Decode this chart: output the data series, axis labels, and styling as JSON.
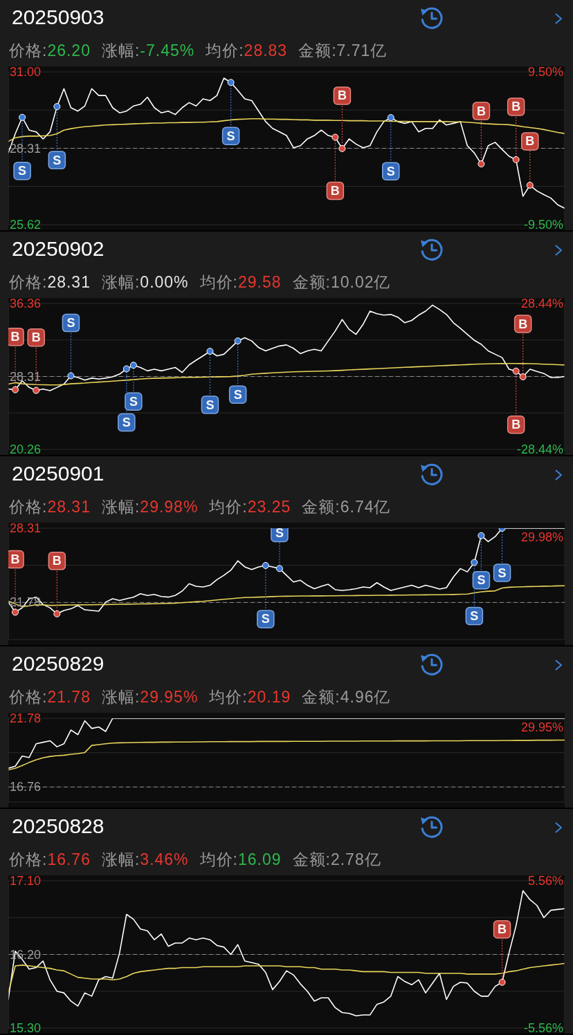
{
  "chart_data": [
    {
      "type": "line",
      "title": "20250903",
      "annotations": [
        "价格:26.20",
        "涨幅:-7.45%",
        "均价:28.83",
        "金额:7.71亿"
      ],
      "categories": [
        null,
        null,
        null,
        null,
        null,
        null,
        null,
        null,
        null,
        null,
        null,
        null,
        null,
        null,
        null,
        null,
        null,
        null,
        null,
        null,
        null,
        null,
        null,
        null,
        null,
        null,
        null,
        null,
        null,
        null,
        null,
        null,
        null,
        null,
        null,
        null,
        null,
        null,
        null,
        null,
        null,
        null,
        null,
        null,
        null,
        null,
        null,
        null,
        null,
        null,
        null,
        null,
        null,
        null,
        null,
        null,
        null,
        null,
        null,
        null,
        null,
        null,
        null,
        null,
        null,
        null,
        null,
        null,
        null,
        null,
        null,
        null,
        null,
        null,
        null,
        null,
        null,
        null,
        null,
        null,
        null
      ],
      "series": [
        {
          "color": "#ffffff",
          "values": [
            28.15,
            28.82,
            29.4,
            28.95,
            28.89,
            28.64,
            28.89,
            29.78,
            30.41,
            29.74,
            29.62,
            29.8,
            30.41,
            30.17,
            30.17,
            29.74,
            29.56,
            29.62,
            29.8,
            29.86,
            30.11,
            29.74,
            29.56,
            29.62,
            29.5,
            29.74,
            29.92,
            29.8,
            30.05,
            29.99,
            30.17,
            30.78,
            30.63,
            30.35,
            30.05,
            29.99,
            29.62,
            29.25,
            29.01,
            28.89,
            28.76,
            28.33,
            28.4,
            28.64,
            28.76,
            28.95,
            28.76,
            28.7,
            28.3,
            28.64,
            28.46,
            28.33,
            28.4,
            28.89,
            29.25,
            29.39,
            29.25,
            29.19,
            29.25,
            28.89,
            29.01,
            29.01,
            29.31,
            29.13,
            29.19,
            29.25,
            28.4,
            28.15,
            27.76,
            28.4,
            28.52,
            28.27,
            28.03,
            27.91,
            26.62,
            27.01,
            26.81,
            26.68,
            26.56,
            26.32,
            26.2
          ]
        },
        {
          "color": "#e9d55b",
          "values": [
            28.55,
            28.68,
            28.72,
            28.74,
            28.74,
            28.75,
            28.76,
            28.82,
            28.95,
            29.0,
            29.04,
            29.07,
            29.09,
            29.11,
            29.13,
            29.14,
            29.15,
            29.16,
            29.17,
            29.18,
            29.19,
            29.2,
            29.2,
            29.21,
            29.21,
            29.22,
            29.22,
            29.23,
            29.23,
            29.24,
            29.25,
            29.28,
            29.31,
            29.33,
            29.34,
            29.35,
            29.35,
            29.34,
            29.34,
            29.33,
            29.33,
            29.32,
            29.31,
            29.31,
            29.3,
            29.3,
            29.3,
            29.29,
            29.29,
            29.28,
            29.28,
            29.28,
            29.27,
            29.27,
            29.27,
            29.26,
            29.26,
            29.26,
            29.25,
            29.25,
            29.25,
            29.25,
            29.25,
            29.25,
            29.24,
            29.24,
            29.23,
            29.21,
            29.19,
            29.17,
            29.16,
            29.15,
            29.14,
            29.11,
            29.07,
            29.04,
            29.01,
            28.97,
            28.92,
            28.87,
            28.83
          ]
        },
        {
          "name": "S",
          "type": "scatter",
          "marker": "circle",
          "color": "#3a78d4",
          "values": [
            null,
            null,
            29.4,
            null,
            null,
            null,
            null,
            29.78,
            null,
            null,
            null,
            null,
            null,
            null,
            null,
            null,
            null,
            null,
            null,
            null,
            null,
            null,
            null,
            null,
            null,
            null,
            null,
            null,
            null,
            null,
            null,
            null,
            30.63,
            null,
            null,
            null,
            null,
            null,
            null,
            null,
            null,
            null,
            null,
            null,
            null,
            null,
            null,
            null,
            null,
            null,
            null,
            null,
            null,
            null,
            null,
            29.39,
            null,
            null,
            null,
            null,
            null,
            null,
            null,
            null,
            null,
            null,
            null,
            null,
            null,
            null,
            null,
            null,
            null,
            null,
            null,
            null,
            null,
            null,
            null,
            null,
            null
          ]
        },
        {
          "name": "B",
          "type": "scatter",
          "marker": "circle",
          "color": "#d9483d",
          "values": [
            null,
            null,
            null,
            null,
            null,
            null,
            null,
            null,
            null,
            null,
            null,
            null,
            null,
            null,
            null,
            null,
            null,
            null,
            null,
            null,
            null,
            null,
            null,
            null,
            null,
            null,
            null,
            null,
            null,
            null,
            null,
            null,
            null,
            null,
            null,
            null,
            null,
            null,
            null,
            null,
            null,
            null,
            null,
            null,
            null,
            null,
            null,
            28.7,
            28.3,
            null,
            null,
            null,
            null,
            null,
            null,
            null,
            null,
            null,
            null,
            null,
            null,
            null,
            null,
            null,
            null,
            null,
            null,
            null,
            27.76,
            null,
            null,
            null,
            null,
            27.91,
            null,
            27.01,
            null,
            null,
            null,
            null,
            null
          ]
        }
      ],
      "ylim": [
        25.62,
        31.0
      ],
      "yticks": [
        {
          "value": 31,
          "label": "31.00"
        },
        {
          "value": 29.66,
          "label": null
        },
        28.31,
        {
          "value": 26.97,
          "label": null
        },
        25.62
      ],
      "y2lim": [
        -9.5,
        9.5
      ],
      "y2ticks": [
        {
          "value": 9.5,
          "label": "9.50%"
        },
        {
          "value": -9.5,
          "label": "-9.50%"
        }
      ],
      "ref_lines": [
        {
          "axis": "y",
          "value": 28.31,
          "color": "#8c8c8c",
          "line_style": "dashed"
        }
      ],
      "grid": true,
      "marker": "none"
    },
    {
      "type": "line",
      "title": "20250902",
      "annotations": [
        "价格:28.31",
        "涨幅:0.00%",
        "均价:29.58",
        "金额:10.02亿"
      ],
      "categories": [
        null,
        null,
        null,
        null,
        null,
        null,
        null,
        null,
        null,
        null,
        null,
        null,
        null,
        null,
        null,
        null,
        null,
        null,
        null,
        null,
        null,
        null,
        null,
        null,
        null,
        null,
        null,
        null,
        null,
        null,
        null,
        null,
        null,
        null,
        null,
        null,
        null,
        null,
        null,
        null,
        null,
        null,
        null,
        null,
        null,
        null,
        null,
        null,
        null,
        null,
        null,
        null,
        null,
        null,
        null,
        null,
        null,
        null,
        null,
        null,
        null,
        null,
        null,
        null,
        null,
        null,
        null,
        null,
        null,
        null,
        null,
        null,
        null,
        null,
        null,
        null,
        null,
        null,
        null,
        null,
        null
      ],
      "series": [
        {
          "color": "#ffffff",
          "values": [
            26.92,
            26.85,
            27.83,
            27.1,
            26.77,
            26.92,
            26.74,
            27.1,
            27.47,
            28.38,
            28.2,
            27.91,
            28.13,
            28.02,
            28.13,
            28.27,
            28.57,
            29.15,
            29.55,
            29.3,
            28.93,
            29.11,
            28.93,
            29.11,
            29.3,
            28.75,
            29.59,
            30.1,
            30.58,
            31.09,
            30.58,
            30.76,
            31.49,
            32.23,
            32.59,
            32.23,
            31.49,
            31.13,
            31.42,
            31.68,
            31.79,
            31.42,
            30.83,
            31.13,
            31.31,
            31.13,
            32.23,
            33.32,
            34.6,
            33.51,
            32.96,
            34.05,
            35.52,
            35.23,
            35.08,
            35.15,
            34.86,
            34.24,
            34.49,
            35.08,
            35.52,
            36.18,
            35.7,
            35.15,
            34.24,
            33.62,
            32.96,
            32.3,
            31.86,
            31.13,
            30.76,
            30.4,
            29.11,
            28.9,
            28.27,
            29.11,
            28.86,
            28.64,
            28.2,
            28.2,
            28.31
          ]
        },
        {
          "color": "#e9d55b",
          "values": [
            27.47,
            27.63,
            27.5,
            27.45,
            27.41,
            27.39,
            27.37,
            27.38,
            27.42,
            27.5,
            27.54,
            27.58,
            27.64,
            27.69,
            27.74,
            27.8,
            27.85,
            27.9,
            27.96,
            28.02,
            28.08,
            28.11,
            28.13,
            28.15,
            28.17,
            28.19,
            28.21,
            28.22,
            28.23,
            28.25,
            28.26,
            28.28,
            28.3,
            28.36,
            28.44,
            28.56,
            28.62,
            28.66,
            28.71,
            28.75,
            28.79,
            28.82,
            28.84,
            28.86,
            28.88,
            28.9,
            28.92,
            28.95,
            28.99,
            29.03,
            29.07,
            29.1,
            29.14,
            29.17,
            29.21,
            29.25,
            29.28,
            29.32,
            29.35,
            29.39,
            29.42,
            29.46,
            29.49,
            29.52,
            29.56,
            29.59,
            29.62,
            29.66,
            29.68,
            29.7,
            29.72,
            29.73,
            29.74,
            29.74,
            29.73,
            29.72,
            29.7,
            29.67,
            29.64,
            29.61,
            29.58
          ]
        },
        {
          "name": "S",
          "type": "scatter",
          "marker": "circle",
          "color": "#3a78d4",
          "values": [
            null,
            null,
            null,
            null,
            null,
            null,
            null,
            null,
            null,
            28.38,
            null,
            null,
            null,
            null,
            null,
            null,
            null,
            29.15,
            29.55,
            null,
            null,
            null,
            null,
            null,
            null,
            null,
            null,
            null,
            null,
            31.09,
            null,
            null,
            null,
            32.23,
            null,
            null,
            null,
            null,
            null,
            null,
            null,
            null,
            null,
            null,
            null,
            null,
            null,
            null,
            null,
            null,
            null,
            null,
            null,
            null,
            null,
            null,
            null,
            null,
            null,
            null,
            null,
            null,
            null,
            null,
            null,
            null,
            null,
            null,
            null,
            null,
            null,
            null,
            null,
            null,
            null,
            null,
            null,
            null,
            null,
            null,
            null
          ]
        },
        {
          "name": "B",
          "type": "scatter",
          "marker": "circle",
          "color": "#d9483d",
          "values": [
            null,
            26.85,
            null,
            null,
            26.77,
            null,
            null,
            null,
            null,
            null,
            null,
            null,
            null,
            null,
            null,
            null,
            null,
            null,
            null,
            null,
            null,
            null,
            null,
            null,
            null,
            null,
            null,
            null,
            null,
            null,
            null,
            null,
            null,
            null,
            null,
            null,
            null,
            null,
            null,
            null,
            null,
            null,
            null,
            null,
            null,
            null,
            null,
            null,
            null,
            null,
            null,
            null,
            null,
            null,
            null,
            null,
            null,
            null,
            null,
            null,
            null,
            null,
            null,
            null,
            null,
            null,
            null,
            null,
            null,
            null,
            null,
            null,
            null,
            28.9,
            28.27,
            null,
            null,
            null,
            null,
            null,
            null
          ]
        }
      ],
      "ylim": [
        20.26,
        36.36
      ],
      "yticks": [
        36.36,
        {
          "value": 32.34,
          "label": null
        },
        28.31,
        {
          "value": 24.29,
          "label": null
        },
        20.26
      ],
      "y2lim": [
        -28.44,
        28.44
      ],
      "y2ticks": [
        {
          "value": 28.44,
          "label": "28.44%"
        },
        {
          "value": -28.44,
          "label": "-28.44%"
        }
      ],
      "ref_lines": [
        {
          "axis": "y",
          "value": 28.31,
          "color": "#8c8c8c",
          "line_style": "dashed"
        }
      ],
      "grid": true,
      "marker": "none"
    },
    {
      "type": "line",
      "title": "20250901",
      "annotations": [
        "价格:28.31",
        "涨幅:29.98%",
        "均价:23.25",
        "金额:6.74亿",
        {
          "text": "29.98%",
          "y": 28.31
        }
      ],
      "categories": [
        null,
        null,
        null,
        null,
        null,
        null,
        null,
        null,
        null,
        null,
        null,
        null,
        null,
        null,
        null,
        null,
        null,
        null,
        null,
        null,
        null,
        null,
        null,
        null,
        null,
        null,
        null,
        null,
        null,
        null,
        null,
        null,
        null,
        null,
        null,
        null,
        null,
        null,
        null,
        null,
        null,
        null,
        null,
        null,
        null,
        null,
        null,
        null,
        null,
        null,
        null,
        null,
        null,
        null,
        null,
        null,
        null,
        null,
        null,
        null,
        null,
        null,
        null,
        null,
        null,
        null,
        null,
        null,
        null,
        null,
        null,
        null,
        null,
        null,
        null,
        null,
        null,
        null,
        null,
        null,
        null
      ],
      "series": [
        {
          "color": "#ffffff",
          "values": [
            21.81,
            20.92,
            21.31,
            22.11,
            22.25,
            21.6,
            21.31,
            20.78,
            21.07,
            21.22,
            21.51,
            21.13,
            21.07,
            21.01,
            21.81,
            22.11,
            21.96,
            22.11,
            22.25,
            22.55,
            22.4,
            22.49,
            22.31,
            22.25,
            22.4,
            22.78,
            23.43,
            23.2,
            23.14,
            23.29,
            23.79,
            24.17,
            24.62,
            25.44,
            24.91,
            24.68,
            24.91,
            25.03,
            24.91,
            24.76,
            24.17,
            23.58,
            23.73,
            23.29,
            22.99,
            23.2,
            23.38,
            22.9,
            22.84,
            22.9,
            22.99,
            23.14,
            23.08,
            23.52,
            23.14,
            22.84,
            22.99,
            23.14,
            23.29,
            23.08,
            23.29,
            23.14,
            22.96,
            23.08,
            24.02,
            24.76,
            24.47,
            25.3,
            27.66,
            27.13,
            27.57,
            28.31,
            28.31,
            28.31,
            28.31,
            28.31,
            28.31,
            28.31,
            28.31,
            28.31,
            28.31
          ]
        },
        {
          "color": "#e9d55b",
          "values": [
            21.9,
            21.66,
            21.4,
            21.48,
            21.58,
            21.57,
            21.52,
            21.53,
            21.55,
            21.56,
            21.57,
            21.58,
            21.58,
            21.59,
            21.6,
            21.61,
            21.62,
            21.63,
            21.64,
            21.65,
            21.66,
            21.67,
            21.68,
            21.7,
            21.72,
            21.76,
            21.8,
            21.84,
            21.88,
            21.94,
            22.0,
            22.06,
            22.11,
            22.17,
            22.21,
            22.23,
            22.25,
            22.27,
            22.3,
            22.32,
            22.33,
            22.34,
            22.35,
            22.35,
            22.36,
            22.36,
            22.37,
            22.37,
            22.38,
            22.38,
            22.39,
            22.4,
            22.4,
            22.41,
            22.41,
            22.42,
            22.43,
            22.43,
            22.44,
            22.44,
            22.45,
            22.46,
            22.46,
            22.47,
            22.48,
            22.5,
            22.52,
            22.62,
            22.72,
            22.77,
            22.8,
            23.05,
            23.12,
            23.14,
            23.16,
            23.18,
            23.19,
            23.21,
            23.22,
            23.24,
            23.25
          ]
        },
        {
          "name": "S",
          "type": "scatter",
          "marker": "circle",
          "color": "#3a78d4",
          "values": [
            null,
            null,
            null,
            null,
            null,
            null,
            null,
            null,
            null,
            null,
            null,
            null,
            null,
            null,
            null,
            null,
            null,
            null,
            null,
            null,
            null,
            null,
            null,
            null,
            null,
            null,
            null,
            null,
            null,
            null,
            null,
            null,
            null,
            null,
            null,
            null,
            null,
            25.03,
            null,
            24.76,
            null,
            null,
            null,
            null,
            null,
            null,
            null,
            null,
            null,
            null,
            null,
            null,
            null,
            null,
            null,
            null,
            null,
            null,
            null,
            null,
            null,
            null,
            null,
            null,
            null,
            null,
            null,
            25.3,
            27.66,
            null,
            null,
            28.31,
            null,
            null,
            null,
            null,
            null,
            null,
            null,
            null,
            null
          ]
        },
        {
          "name": "B",
          "type": "scatter",
          "marker": "circle",
          "color": "#d9483d",
          "values": [
            null,
            20.92,
            null,
            null,
            null,
            null,
            null,
            20.78,
            null,
            null,
            null,
            null,
            null,
            null,
            null,
            null,
            null,
            null,
            null,
            null,
            null,
            null,
            null,
            null,
            null,
            null,
            null,
            null,
            null,
            null,
            null,
            null,
            null,
            null,
            null,
            null,
            null,
            null,
            null,
            null,
            null,
            null,
            null,
            null,
            null,
            null,
            null,
            null,
            null,
            null,
            null,
            null,
            null,
            null,
            null,
            null,
            null,
            null,
            null,
            null,
            null,
            null,
            null,
            null,
            null,
            null,
            null,
            null,
            null,
            null,
            null,
            null,
            null,
            null,
            null,
            null,
            null,
            null,
            null,
            null,
            null
          ]
        }
      ],
      "ylim": [
        18.52,
        28.31
      ],
      "yticks": [
        28.31,
        {
          "value": 25.05,
          "label": null
        },
        21.78
      ],
      "ref_lines": [
        {
          "axis": "y",
          "value": 21.78,
          "color": "#8c8c8c",
          "line_style": "dashed"
        }
      ],
      "grid": true,
      "marker": "none"
    },
    {
      "type": "line",
      "title": "20250829",
      "annotations": [
        "价格:21.78",
        "涨幅:29.95%",
        "均价:20.19",
        "金额:4.96亿",
        {
          "text": "29.95%",
          "y": 21.78
        }
      ],
      "categories": [
        null,
        null,
        null,
        null,
        null,
        null,
        null,
        null,
        null,
        null,
        null,
        null,
        null,
        null,
        null,
        null,
        null,
        null,
        null,
        null,
        null,
        null,
        null,
        null,
        null,
        null,
        null,
        null,
        null,
        null,
        null,
        null,
        null,
        null,
        null,
        null,
        null,
        null,
        null,
        null,
        null,
        null,
        null,
        null,
        null,
        null,
        null,
        null,
        null,
        null,
        null,
        null,
        null,
        null,
        null,
        null,
        null,
        null,
        null,
        null,
        null,
        null,
        null,
        null,
        null,
        null,
        null,
        null,
        null,
        null,
        null,
        null,
        null,
        null,
        null,
        null,
        null,
        null,
        null,
        null,
        null
      ],
      "series": [
        {
          "color": "#ffffff",
          "values": [
            18.13,
            18.28,
            19.02,
            18.91,
            19.92,
            20.03,
            20.14,
            19.7,
            19.92,
            20.93,
            20.59,
            21.6,
            21.04,
            21.15,
            20.82,
            21.78,
            21.78,
            21.78,
            21.78,
            21.78,
            21.78,
            21.78,
            21.78,
            21.78,
            21.78,
            21.78,
            21.78,
            21.78,
            21.78,
            21.78,
            21.78,
            21.78,
            21.78,
            21.78,
            21.78,
            21.78,
            21.78,
            21.78,
            21.78,
            21.78,
            21.78,
            21.78,
            21.78,
            21.78,
            21.78,
            21.78,
            21.78,
            21.78,
            21.78,
            21.78,
            21.78,
            21.78,
            21.78,
            21.78,
            21.78,
            21.78,
            21.78,
            21.78,
            21.78,
            21.78,
            21.78,
            21.78,
            21.78,
            21.78,
            21.78,
            21.78,
            21.78,
            21.78,
            21.78,
            21.78,
            21.78,
            21.78,
            21.78,
            21.78,
            21.78,
            21.78,
            21.78,
            21.78,
            21.78,
            21.78,
            21.78
          ]
        },
        {
          "color": "#e9d55b",
          "values": [
            18.01,
            18.13,
            18.33,
            18.55,
            18.75,
            18.9,
            18.99,
            19.05,
            19.08,
            19.15,
            19.2,
            19.28,
            19.8,
            19.86,
            19.92,
            19.97,
            19.99,
            20.0,
            20.01,
            20.02,
            20.03,
            20.03,
            20.04,
            20.04,
            20.05,
            20.05,
            20.05,
            20.06,
            20.06,
            20.07,
            20.07,
            20.07,
            20.08,
            20.08,
            20.08,
            20.08,
            20.09,
            20.09,
            20.09,
            20.09,
            20.09,
            20.1,
            20.1,
            20.1,
            20.1,
            20.1,
            20.11,
            20.11,
            20.11,
            20.11,
            20.11,
            20.12,
            20.12,
            20.12,
            20.12,
            20.12,
            20.13,
            20.13,
            20.13,
            20.13,
            20.13,
            20.14,
            20.14,
            20.14,
            20.14,
            20.14,
            20.15,
            20.15,
            20.15,
            20.15,
            20.15,
            20.16,
            20.16,
            20.17,
            20.17,
            20.17,
            20.18,
            20.18,
            20.18,
            20.19,
            20.19
          ]
        }
      ],
      "ylim": [
        15.66,
        21.78
      ],
      "yticks": [
        21.78,
        {
          "value": 19.27,
          "label": null
        },
        16.76
      ],
      "ref_lines": [
        {
          "axis": "y",
          "value": 16.76,
          "color": "#8c8c8c",
          "line_style": "dashed"
        }
      ],
      "grid": true,
      "marker": "none"
    },
    {
      "type": "line",
      "title": "20250828",
      "annotations": [
        "价格:16.76",
        "涨幅:3.46%",
        "均价:16.09",
        "金额:2.78亿"
      ],
      "categories": [
        null,
        null,
        null,
        null,
        null,
        null,
        null,
        null,
        null,
        null,
        null,
        null,
        null,
        null,
        null,
        null,
        null,
        null,
        null,
        null,
        null,
        null,
        null,
        null,
        null,
        null,
        null,
        null,
        null,
        null,
        null,
        null,
        null,
        null,
        null,
        null,
        null,
        null,
        null,
        null,
        null,
        null,
        null,
        null,
        null,
        null,
        null,
        null,
        null,
        null,
        null,
        null,
        null,
        null,
        null,
        null,
        null,
        null,
        null,
        null,
        null,
        null,
        null,
        null,
        null,
        null,
        null,
        null,
        null,
        null,
        null,
        null,
        null,
        null,
        null,
        null,
        null,
        null,
        null,
        null,
        null
      ],
      "series": [
        {
          "color": "#ffffff",
          "values": [
            15.65,
            16.24,
            16.14,
            16.02,
            16.04,
            16.12,
            15.89,
            15.75,
            15.73,
            15.63,
            15.57,
            15.73,
            15.69,
            15.89,
            15.93,
            15.91,
            16.22,
            16.69,
            16.63,
            16.51,
            16.49,
            16.38,
            16.45,
            16.3,
            16.34,
            16.34,
            16.4,
            16.38,
            16.4,
            16.38,
            16.31,
            16.29,
            16.2,
            16.32,
            16.12,
            16.1,
            16.08,
            15.98,
            15.77,
            15.87,
            16.0,
            15.95,
            15.84,
            15.75,
            15.63,
            15.67,
            15.67,
            15.55,
            15.49,
            15.48,
            15.45,
            15.46,
            15.46,
            15.59,
            15.62,
            15.69,
            15.93,
            15.87,
            15.83,
            15.89,
            15.73,
            15.85,
            15.97,
            15.65,
            15.81,
            15.86,
            15.85,
            15.75,
            15.69,
            15.69,
            15.81,
            15.86,
            16.22,
            16.55,
            16.98,
            16.87,
            16.8,
            16.65,
            16.74,
            16.75,
            16.76
          ]
        },
        {
          "color": "#e9d55b",
          "values": [
            15.73,
            16.06,
            16.07,
            16.06,
            16.05,
            16.04,
            16.03,
            16.01,
            16.0,
            15.96,
            15.92,
            15.91,
            15.9,
            15.9,
            15.9,
            15.89,
            15.9,
            15.93,
            15.97,
            15.99,
            16.0,
            16.01,
            16.02,
            16.03,
            16.03,
            16.04,
            16.04,
            16.04,
            16.05,
            16.05,
            16.05,
            16.05,
            16.05,
            16.05,
            16.06,
            16.06,
            16.06,
            16.06,
            16.06,
            16.06,
            16.05,
            16.05,
            16.05,
            16.04,
            16.04,
            16.02,
            16.02,
            16.02,
            16.01,
            16.01,
            16.0,
            15.99,
            15.99,
            15.99,
            15.99,
            15.98,
            15.98,
            15.98,
            15.98,
            15.98,
            15.97,
            15.97,
            15.97,
            15.97,
            15.97,
            15.97,
            15.96,
            15.96,
            15.96,
            15.96,
            15.96,
            15.97,
            15.99,
            16.0,
            16.02,
            16.04,
            16.05,
            16.06,
            16.07,
            16.08,
            16.09
          ]
        },
        {
          "name": "B",
          "type": "scatter",
          "marker": "circle",
          "color": "#d9483d",
          "values": [
            null,
            null,
            null,
            null,
            null,
            null,
            null,
            null,
            null,
            null,
            null,
            null,
            null,
            null,
            null,
            null,
            null,
            null,
            null,
            null,
            null,
            null,
            null,
            null,
            null,
            null,
            null,
            null,
            null,
            null,
            null,
            null,
            null,
            null,
            null,
            null,
            null,
            null,
            null,
            null,
            null,
            null,
            null,
            null,
            null,
            null,
            null,
            null,
            null,
            null,
            null,
            null,
            null,
            null,
            null,
            null,
            null,
            null,
            null,
            null,
            null,
            null,
            null,
            null,
            null,
            null,
            null,
            null,
            null,
            null,
            null,
            15.86,
            null,
            null,
            null,
            null,
            null,
            null,
            null,
            null,
            null
          ]
        }
      ],
      "ylim": [
        15.3,
        17.1
      ],
      "yticks": [
        {
          "value": 17.1,
          "label": "17.10"
        },
        {
          "value": 16.65,
          "label": null
        },
        {
          "value": 16.2,
          "label": "16.20"
        },
        {
          "value": 15.75,
          "label": null
        },
        {
          "value": 15.3,
          "label": "15.30"
        }
      ],
      "y2lim": [
        -5.56,
        5.56
      ],
      "y2ticks": [
        {
          "value": 5.56,
          "label": "5.56%"
        },
        {
          "value": -5.56,
          "label": "-5.56%"
        }
      ],
      "ref_lines": [
        {
          "axis": "y",
          "value": 16.2,
          "color": "#8c8c8c",
          "line_style": "dashed"
        }
      ],
      "grid": true,
      "marker": "none"
    }
  ]
}
